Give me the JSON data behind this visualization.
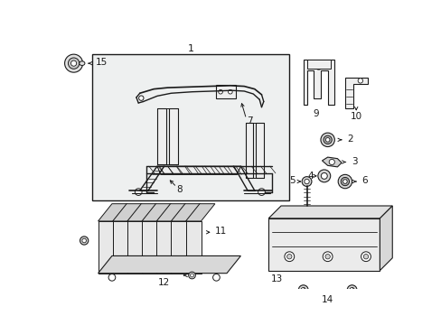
{
  "background_color": "#ffffff",
  "fig_width": 4.89,
  "fig_height": 3.6,
  "dpi": 100,
  "line_color": "#1a1a1a",
  "gray_fill": "#efefef",
  "dark_gray": "#cccccc"
}
